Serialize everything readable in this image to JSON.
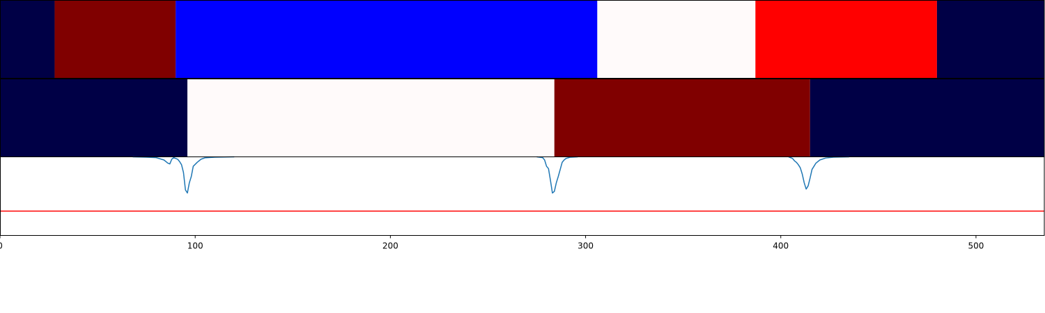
{
  "chart_data": [
    {
      "type": "heatmap",
      "segments": [
        {
          "x0": 0,
          "x1": 28,
          "color": "#000046"
        },
        {
          "x0": 28,
          "x1": 90,
          "color": "#800000"
        },
        {
          "x0": 90,
          "x1": 306,
          "color": "#0000ff"
        },
        {
          "x0": 306,
          "x1": 387,
          "color": "#fffafa"
        },
        {
          "x0": 387,
          "x1": 480,
          "color": "#ff0000"
        },
        {
          "x0": 480,
          "x1": 535,
          "color": "#000046"
        }
      ]
    },
    {
      "type": "heatmap",
      "segments": [
        {
          "x0": 0,
          "x1": 96,
          "color": "#000046"
        },
        {
          "x0": 96,
          "x1": 284,
          "color": "#fffafa"
        },
        {
          "x0": 284,
          "x1": 415,
          "color": "#800000"
        },
        {
          "x0": 415,
          "x1": 535,
          "color": "#000046"
        }
      ]
    },
    {
      "type": "line",
      "xlim": [
        0,
        535
      ],
      "ylim": [
        -1.0,
        0.0
      ],
      "series": [
        {
          "color": "#1f77b4",
          "points": [
            [
              68,
              0.0
            ],
            [
              75,
              -0.004
            ],
            [
              80,
              -0.01
            ],
            [
              84,
              -0.04
            ],
            [
              86,
              -0.08
            ],
            [
              87,
              -0.09
            ],
            [
              88,
              -0.03
            ],
            [
              89,
              -0.01
            ],
            [
              91,
              -0.03
            ],
            [
              92,
              -0.06
            ],
            [
              93,
              -0.1
            ],
            [
              94,
              -0.2
            ],
            [
              95,
              -0.42
            ],
            [
              96,
              -0.46
            ],
            [
              97,
              -0.33
            ],
            [
              98,
              -0.25
            ],
            [
              99,
              -0.12
            ],
            [
              101,
              -0.07
            ],
            [
              103,
              -0.03
            ],
            [
              105,
              -0.012
            ],
            [
              110,
              -0.004
            ],
            [
              120,
              0.0
            ],
            [
              275,
              0.0
            ],
            [
              278,
              -0.01
            ],
            [
              279,
              -0.04
            ],
            [
              280,
              -0.12
            ],
            [
              281,
              -0.15
            ],
            [
              282,
              -0.3
            ],
            [
              283,
              -0.46
            ],
            [
              284,
              -0.44
            ],
            [
              285,
              -0.33
            ],
            [
              286,
              -0.25
            ],
            [
              287,
              -0.16
            ],
            [
              288,
              -0.07
            ],
            [
              289,
              -0.04
            ],
            [
              290,
              -0.02
            ],
            [
              292,
              -0.006
            ],
            [
              296,
              0.0
            ],
            [
              404,
              0.0
            ],
            [
              406,
              -0.02
            ],
            [
              407,
              -0.05
            ],
            [
              408,
              -0.07
            ],
            [
              409,
              -0.1
            ],
            [
              410,
              -0.14
            ],
            [
              411,
              -0.22
            ],
            [
              412,
              -0.33
            ],
            [
              413,
              -0.41
            ],
            [
              414,
              -0.37
            ],
            [
              415,
              -0.27
            ],
            [
              416,
              -0.16
            ],
            [
              417,
              -0.12
            ],
            [
              418,
              -0.08
            ],
            [
              420,
              -0.04
            ],
            [
              423,
              -0.015
            ],
            [
              427,
              -0.004
            ],
            [
              435,
              0.0
            ]
          ]
        }
      ],
      "hline": {
        "y": -0.69,
        "color": "#ff0000"
      },
      "xticks": [
        0,
        100,
        200,
        300,
        400,
        500
      ]
    }
  ]
}
